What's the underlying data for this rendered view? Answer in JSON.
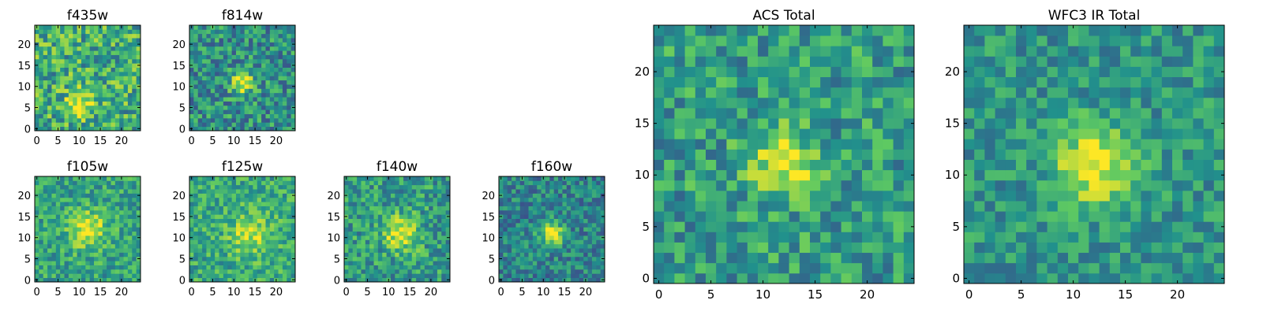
{
  "figure": {
    "background": "#ffffff"
  },
  "colormap": [
    "#440154",
    "#3b528b",
    "#21918c",
    "#5ec962",
    "#fde725"
  ],
  "chart_data": [
    {
      "id": "f435w",
      "type": "heatmap",
      "title": "f435w",
      "grid": 25,
      "xlim": [
        0,
        24
      ],
      "ylim": [
        0,
        24
      ],
      "xticks": [
        "0",
        "5",
        "10",
        "15",
        "20"
      ],
      "yticks": [
        "0",
        "5",
        "10",
        "15",
        "20"
      ],
      "blobs": [
        {
          "x": 10,
          "y": 6,
          "amp": 0.45,
          "sigma": 2.0
        }
      ],
      "base": 0.62,
      "noise": 0.55,
      "noise_seed": 11
    },
    {
      "id": "f814w",
      "type": "heatmap",
      "title": "f814w",
      "grid": 25,
      "xlim": [
        0,
        24
      ],
      "ylim": [
        0,
        24
      ],
      "xticks": [
        "0",
        "5",
        "10",
        "15",
        "20"
      ],
      "yticks": [
        "0",
        "5",
        "10",
        "15",
        "20"
      ],
      "blobs": [
        {
          "x": 12,
          "y": 11,
          "amp": 0.55,
          "sigma": 1.8
        }
      ],
      "base": 0.5,
      "noise": 0.5,
      "noise_seed": 23
    },
    {
      "id": "f105w",
      "type": "heatmap",
      "title": "f105w",
      "grid": 25,
      "xlim": [
        0,
        24
      ],
      "ylim": [
        0,
        24
      ],
      "xticks": [
        "0",
        "5",
        "10",
        "15",
        "20"
      ],
      "yticks": [
        "0",
        "5",
        "10",
        "15",
        "20"
      ],
      "blobs": [
        {
          "x": 12,
          "y": 12,
          "amp": 0.4,
          "sigma": 3.0
        }
      ],
      "base": 0.58,
      "noise": 0.4,
      "noise_seed": 37
    },
    {
      "id": "f125w",
      "type": "heatmap",
      "title": "f125w",
      "grid": 25,
      "xlim": [
        0,
        24
      ],
      "ylim": [
        0,
        24
      ],
      "xticks": [
        "0",
        "5",
        "10",
        "15",
        "20"
      ],
      "yticks": [
        "0",
        "5",
        "10",
        "15",
        "20"
      ],
      "blobs": [
        {
          "x": 14,
          "y": 11,
          "amp": 0.3,
          "sigma": 3.5
        }
      ],
      "base": 0.6,
      "noise": 0.4,
      "noise_seed": 41
    },
    {
      "id": "f140w",
      "type": "heatmap",
      "title": "f140w",
      "grid": 25,
      "xlim": [
        0,
        24
      ],
      "ylim": [
        0,
        24
      ],
      "xticks": [
        "0",
        "5",
        "10",
        "15",
        "20"
      ],
      "yticks": [
        "0",
        "5",
        "10",
        "15",
        "20"
      ],
      "blobs": [
        {
          "x": 13,
          "y": 11,
          "amp": 0.45,
          "sigma": 2.8
        }
      ],
      "base": 0.55,
      "noise": 0.45,
      "noise_seed": 53
    },
    {
      "id": "f160w",
      "type": "heatmap",
      "title": "f160w",
      "grid": 25,
      "xlim": [
        0,
        24
      ],
      "ylim": [
        0,
        24
      ],
      "xticks": [
        "0",
        "5",
        "10",
        "15",
        "20"
      ],
      "yticks": [
        "0",
        "5",
        "10",
        "15",
        "20"
      ],
      "blobs": [
        {
          "x": 12,
          "y": 11,
          "amp": 0.55,
          "sigma": 2.0
        }
      ],
      "base": 0.45,
      "noise": 0.4,
      "noise_seed": 67
    },
    {
      "id": "acs_total",
      "type": "heatmap",
      "title": "ACS Total",
      "grid": 25,
      "xlim": [
        0,
        24
      ],
      "ylim": [
        0,
        24
      ],
      "xticks": [
        "0",
        "5",
        "10",
        "15",
        "20"
      ],
      "yticks": [
        "0",
        "5",
        "10",
        "15",
        "20"
      ],
      "blobs": [
        {
          "x": 12,
          "y": 11,
          "amp": 0.45,
          "sigma": 2.2
        }
      ],
      "base": 0.55,
      "noise": 0.45,
      "noise_seed": 79
    },
    {
      "id": "wfc3_ir_total",
      "type": "heatmap",
      "title": "WFC3 IR Total",
      "grid": 25,
      "xlim": [
        0,
        24
      ],
      "ylim": [
        0,
        24
      ],
      "xticks": [
        "0",
        "5",
        "10",
        "15",
        "20"
      ],
      "yticks": [
        "0",
        "5",
        "10",
        "15",
        "20"
      ],
      "blobs": [
        {
          "x": 12,
          "y": 11,
          "amp": 0.5,
          "sigma": 2.6
        }
      ],
      "base": 0.52,
      "noise": 0.35,
      "noise_seed": 97
    }
  ]
}
